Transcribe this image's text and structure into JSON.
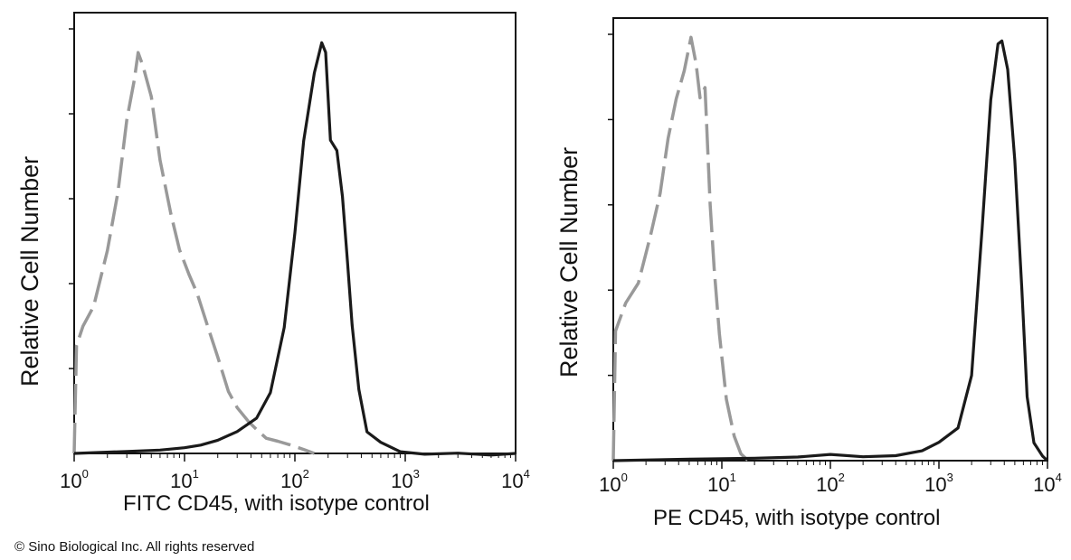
{
  "chart_data": [
    {
      "type": "area",
      "xscale": "log",
      "xlim": [
        1,
        10000
      ],
      "ylim": [
        0,
        1
      ],
      "xlabel": "FITC  CD45,  with isotype control",
      "ylabel": "Relative Cell Number",
      "xticks": [
        {
          "base": "10",
          "exp": "0"
        },
        {
          "base": "10",
          "exp": "1"
        },
        {
          "base": "10",
          "exp": "2"
        },
        {
          "base": "10",
          "exp": "3"
        },
        {
          "base": "10",
          "exp": "4"
        }
      ],
      "y_minor_ticks": 5,
      "series": [
        {
          "style": "dashed",
          "color": "#999999",
          "x": [
            1.0,
            1.05,
            1.2,
            1.5,
            2.0,
            2.5,
            3.0,
            3.5,
            3.8,
            4.2,
            5.0,
            6.0,
            7.5,
            9.0,
            11,
            13,
            16,
            20,
            25,
            30,
            38,
            45,
            55,
            70,
            90,
            120,
            150
          ],
          "y": [
            0.0,
            0.26,
            0.3,
            0.35,
            0.48,
            0.62,
            0.79,
            0.88,
            0.94,
            0.91,
            0.84,
            0.69,
            0.56,
            0.48,
            0.42,
            0.38,
            0.31,
            0.23,
            0.15,
            0.11,
            0.08,
            0.06,
            0.04,
            0.025,
            0.015,
            0.005,
            0.0
          ]
        },
        {
          "style": "solid",
          "color": "#1a1a1a",
          "x": [
            1.0,
            3,
            6,
            10,
            14,
            20,
            30,
            45,
            60,
            80,
            100,
            120,
            150,
            175,
            190,
            210,
            240,
            270,
            300,
            330,
            380,
            450,
            600,
            900,
            1500,
            3000,
            6000,
            10000
          ],
          "y": [
            0.0,
            0.003,
            0.005,
            0.01,
            0.015,
            0.03,
            0.05,
            0.08,
            0.14,
            0.3,
            0.52,
            0.74,
            0.9,
            0.97,
            0.95,
            0.74,
            0.71,
            0.6,
            0.45,
            0.3,
            0.15,
            0.05,
            0.02,
            0.008,
            0.004,
            0.002,
            0.001,
            0.0
          ]
        }
      ]
    },
    {
      "type": "area",
      "xscale": "log",
      "xlim": [
        1,
        10000
      ],
      "ylim": [
        0,
        1
      ],
      "xlabel": "PE CD45, with isotype control",
      "ylabel": "Relative Cell Number",
      "xticks": [
        {
          "base": "10",
          "exp": "0"
        },
        {
          "base": "10",
          "exp": "1"
        },
        {
          "base": "10",
          "exp": "2"
        },
        {
          "base": "10",
          "exp": "3"
        },
        {
          "base": "10",
          "exp": "4"
        }
      ],
      "y_minor_ticks": 5,
      "series": [
        {
          "style": "dashed",
          "color": "#999999",
          "x": [
            1.0,
            1.05,
            1.3,
            1.7,
            2.2,
            2.7,
            3.2,
            3.8,
            4.5,
            5.2,
            5.8,
            6.3,
            7.0,
            7.8,
            8.5,
            9.5,
            11,
            13,
            15,
            17,
            20
          ],
          "y": [
            0.0,
            0.31,
            0.37,
            0.42,
            0.53,
            0.63,
            0.76,
            0.85,
            0.91,
            0.99,
            0.93,
            0.85,
            0.87,
            0.6,
            0.45,
            0.3,
            0.15,
            0.06,
            0.02,
            0.005,
            0.0
          ]
        },
        {
          "style": "solid",
          "color": "#1a1a1a",
          "x": [
            1.0,
            5,
            20,
            50,
            100,
            200,
            400,
            700,
            1000,
            1500,
            2000,
            2500,
            3000,
            3500,
            3800,
            4300,
            5000,
            5800,
            6500,
            7500,
            9000,
            10000
          ],
          "y": [
            0.0,
            0.002,
            0.003,
            0.005,
            0.01,
            0.008,
            0.01,
            0.02,
            0.04,
            0.08,
            0.2,
            0.55,
            0.85,
            0.98,
            0.99,
            0.92,
            0.7,
            0.4,
            0.15,
            0.04,
            0.01,
            0.0
          ]
        }
      ]
    }
  ],
  "copyright": "© Sino Biological Inc. All rights reserved"
}
